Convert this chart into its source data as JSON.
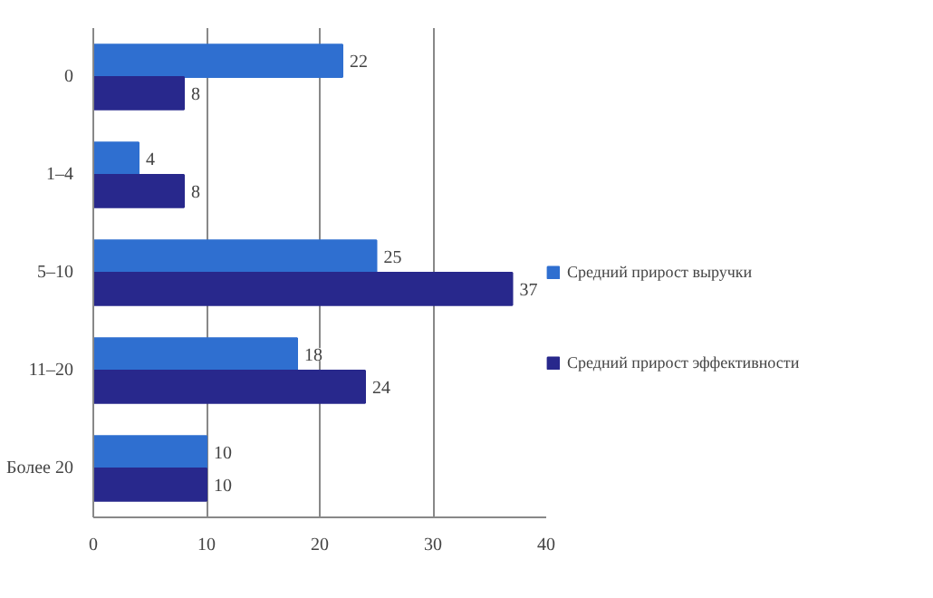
{
  "chart_data": {
    "type": "bar",
    "orientation": "horizontal",
    "categories": [
      "0",
      "1–4",
      "5–10",
      "11–20",
      "Более 20"
    ],
    "series": [
      {
        "name": "Средний прирост выручки",
        "color": "#2f6fd0",
        "values": [
          22,
          4,
          25,
          18,
          10
        ]
      },
      {
        "name": "Средний прирост эффективности",
        "color": "#28288c",
        "values": [
          8,
          8,
          37,
          24,
          10
        ]
      }
    ],
    "xlim": [
      0,
      40
    ],
    "xticks": [
      0,
      10,
      20,
      30,
      40
    ],
    "grid": "x",
    "legend": "right",
    "data_labels": true
  }
}
